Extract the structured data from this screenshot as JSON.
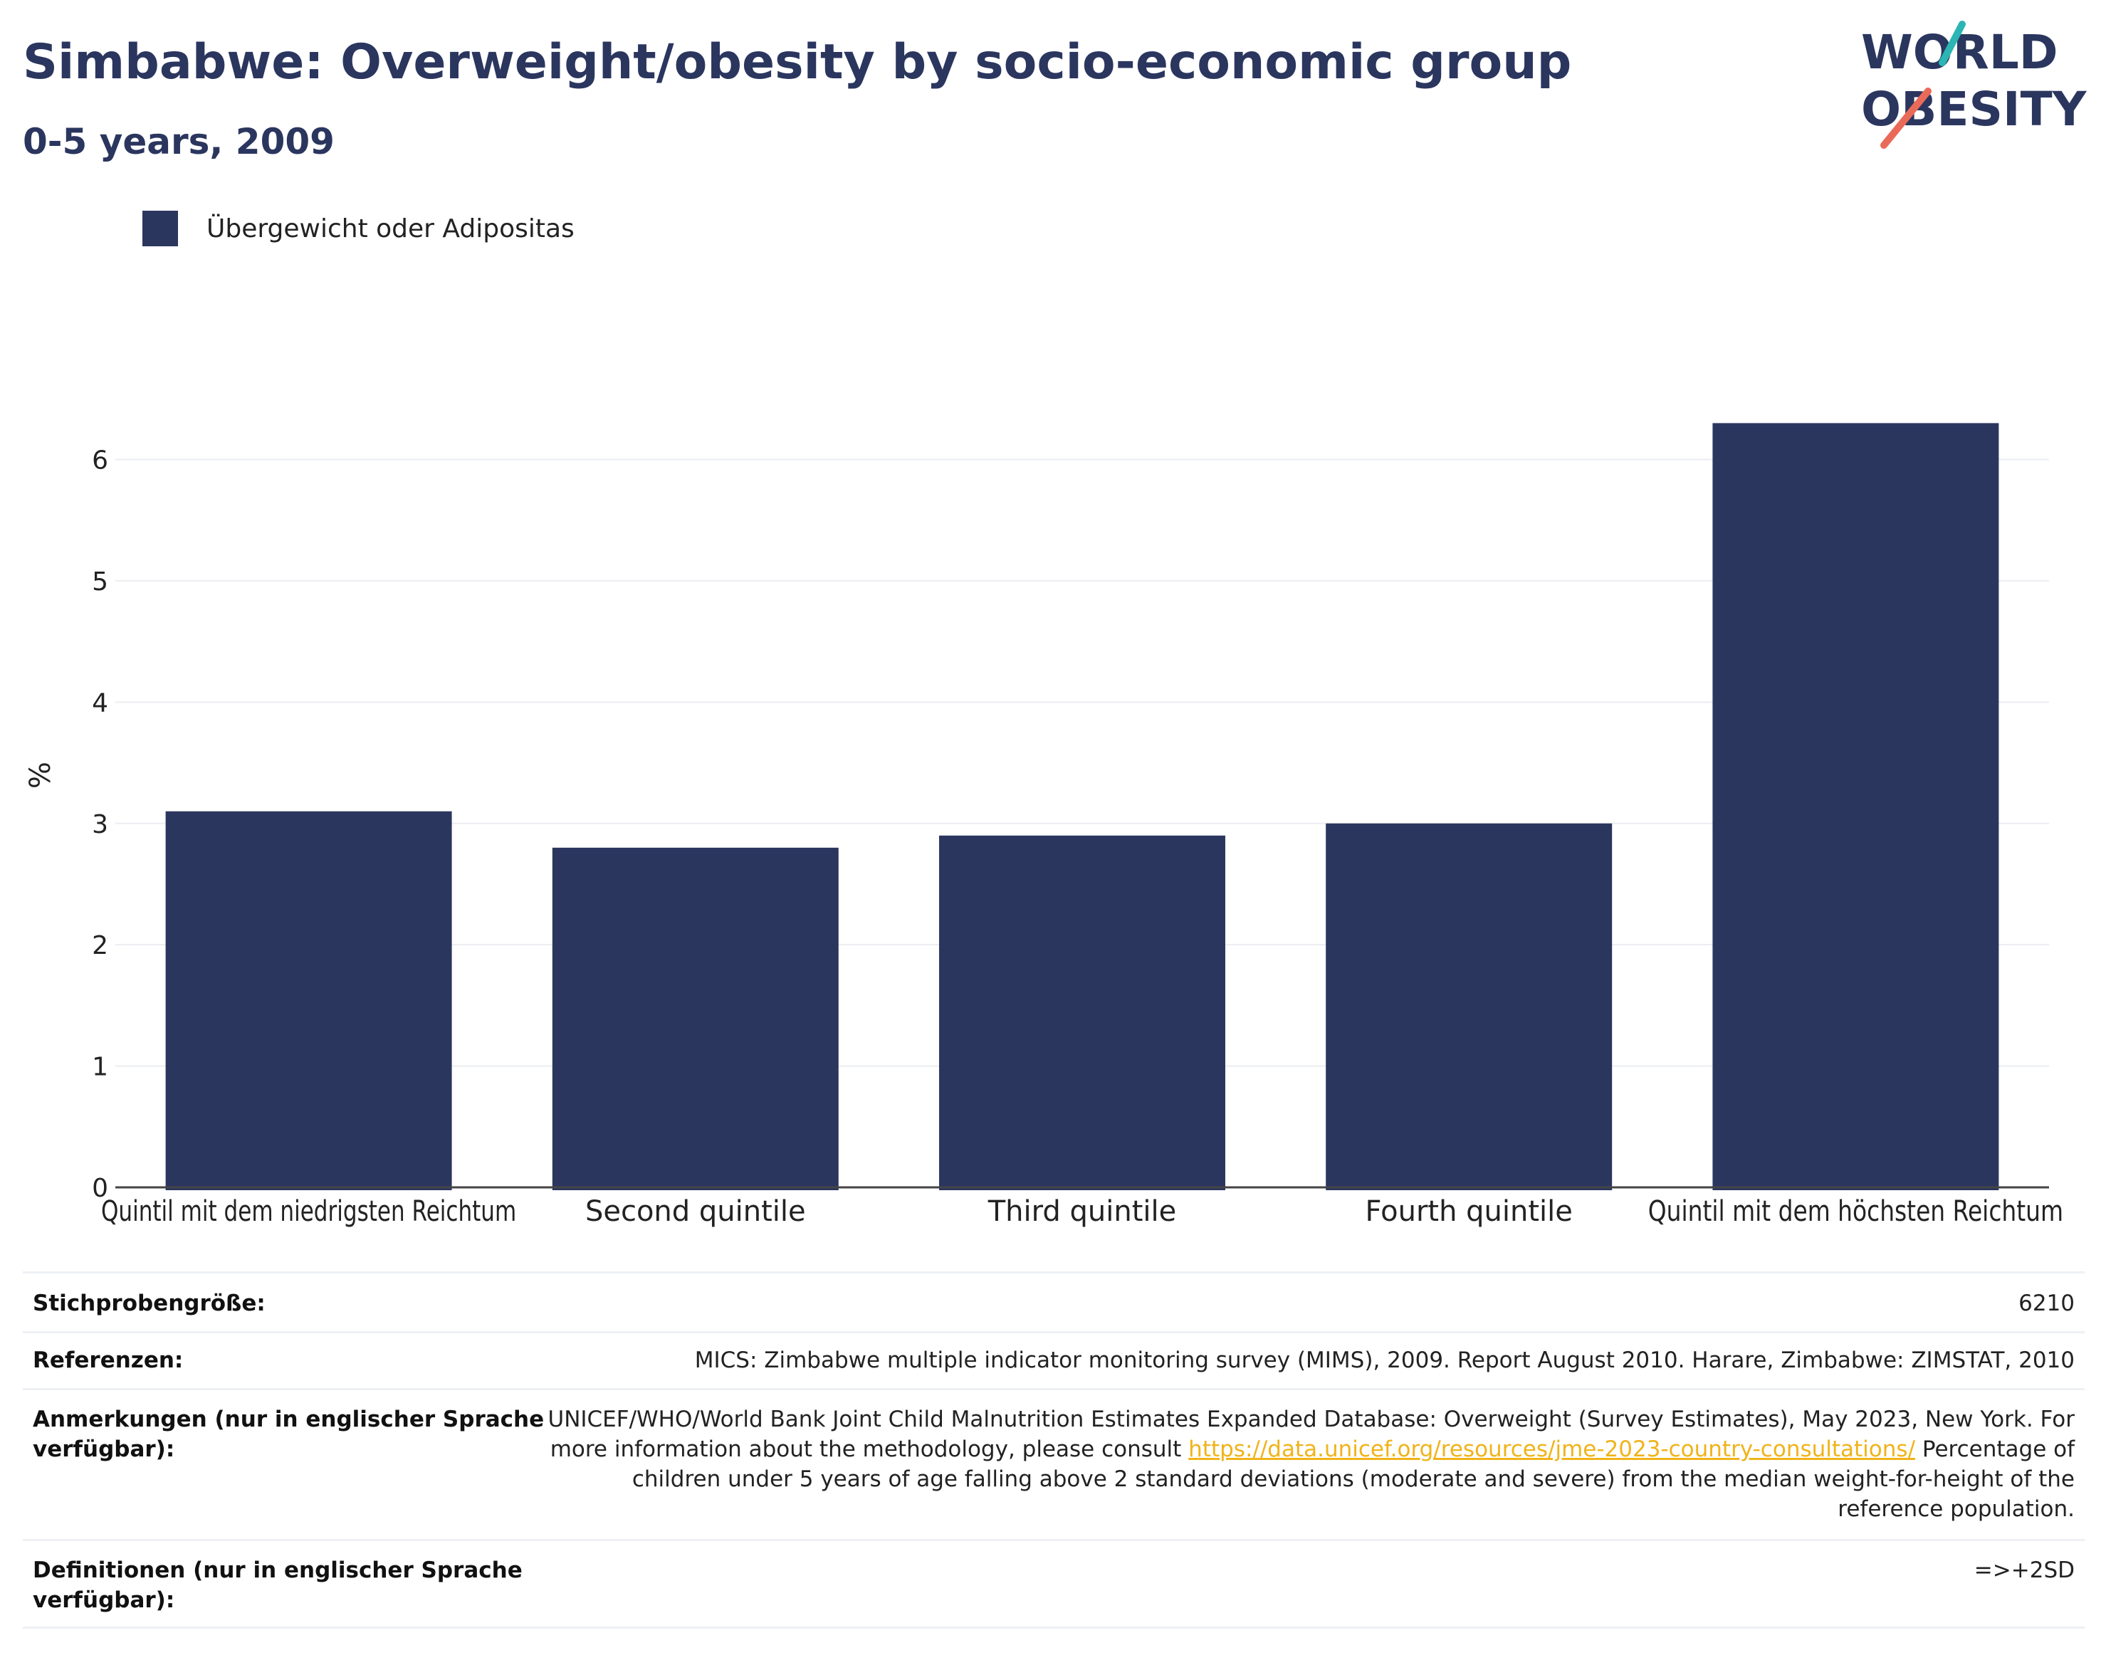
{
  "header": {
    "title": "Simbabwe: Overweight/obesity by socio-economic group",
    "subtitle": "0-5 years, 2009",
    "logo_line1": "WORLD",
    "logo_line2": "OBESITY"
  },
  "legend": {
    "label": "Übergewicht oder Adipositas",
    "color": "#2b365f"
  },
  "chart_data": {
    "type": "bar",
    "categories": [
      "Quintil mit dem niedrigsten Reichtum",
      "Second quintile",
      "Third quintile",
      "Fourth quintile",
      "Quintil mit dem höchsten Reichtum"
    ],
    "series": [
      {
        "name": "Übergewicht oder Adipositas",
        "values": [
          3.1,
          2.8,
          2.9,
          3.0,
          6.3
        ],
        "color": "#2b365f"
      }
    ],
    "ylabel": "%",
    "xlabel": "",
    "ylim": [
      0,
      7.03
    ],
    "yticks": [
      0,
      1,
      2,
      3,
      4,
      5,
      6
    ],
    "grid": true,
    "legend_position": "top-left"
  },
  "info": {
    "sample_label": "Stichprobengröße:",
    "sample_value": "6210",
    "references_label": "Referenzen:",
    "references_value": "MICS: Zimbabwe multiple indicator monitoring survey (MIMS), 2009. Report August 2010. Harare, Zimbabwe: ZIMSTAT, 2010",
    "notes_label": "Anmerkungen (nur in englischer Sprache verfügbar):",
    "notes_line1": "UNICEF/WHO/World Bank Joint Child Malnutrition Estimates Expanded Database: Overweight (Survey Estimates), May 2023, New York. For more information about the methodology, please consult",
    "notes_link": "https://data.unicef.org/resources/jme-2023-country-consultations/",
    "notes_line2": "Percentage of children under 5 years of age falling above 2 standard deviations (moderate and severe) from the median weight-for-height of the reference population.",
    "definitions_label": "Definitionen (nur in englischer Sprache verfügbar):",
    "definitions_value": "=>+2SD"
  }
}
